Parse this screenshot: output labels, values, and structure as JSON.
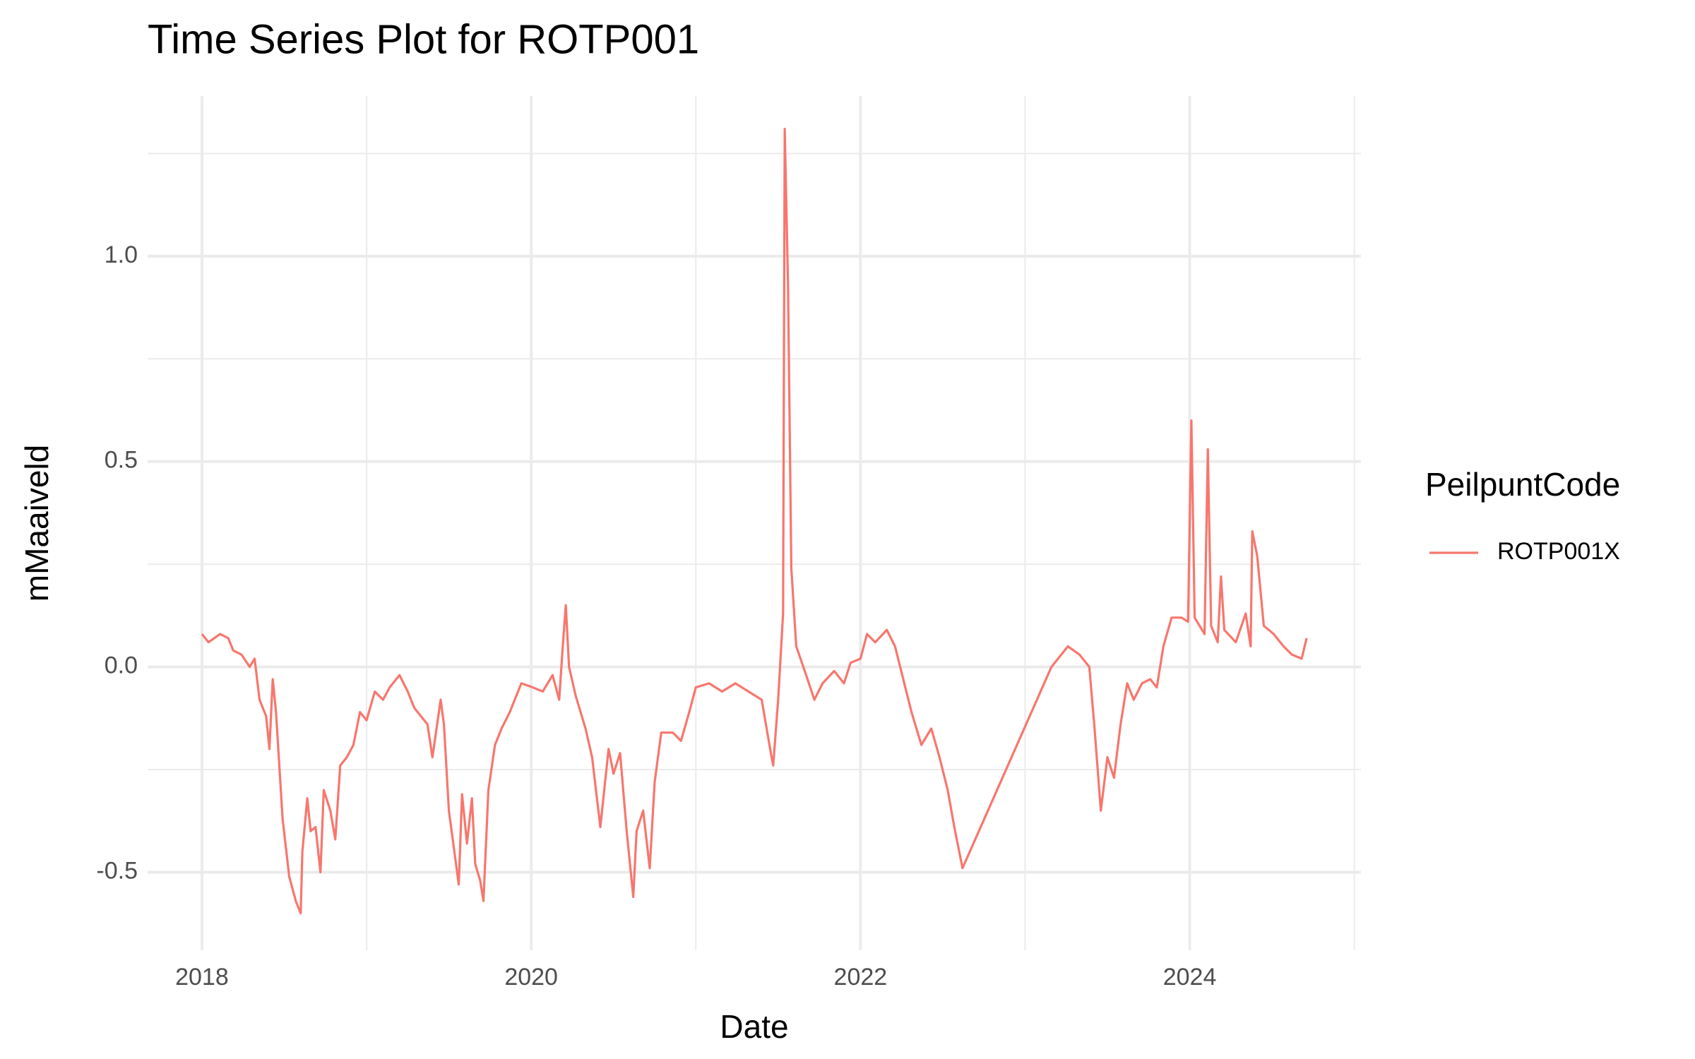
{
  "chart_data": {
    "type": "line",
    "title": "Time Series Plot for ROTP001",
    "x_label": "Date",
    "y_label": "mMaaiveld",
    "legend_title": "PeilpuntCode",
    "legend_position": "right",
    "grid": true,
    "xlim": [
      2017.67,
      2025.04
    ],
    "xticks": [
      2018,
      2020,
      2022,
      2024
    ],
    "xminor": [
      2019,
      2021,
      2023,
      2025
    ],
    "ylim": [
      -0.69,
      1.39
    ],
    "yticks": [
      {
        "value": -0.5,
        "label": "-0.5"
      },
      {
        "value": 0,
        "label": "0.0"
      },
      {
        "value": 0.5,
        "label": "0.5"
      },
      {
        "value": 1,
        "label": "1.0"
      }
    ],
    "yminor": [
      -0.25,
      0.25,
      0.75,
      1.25
    ],
    "x": [
      2018.0,
      2018.04,
      2018.11,
      2018.16,
      2018.19,
      2018.24,
      2018.29,
      2018.32,
      2018.35,
      2018.39,
      2018.41,
      2018.43,
      2018.45,
      2018.49,
      2018.53,
      2018.57,
      2018.6,
      2018.61,
      2018.64,
      2018.66,
      2018.69,
      2018.72,
      2018.74,
      2018.78,
      2018.81,
      2018.84,
      2018.88,
      2018.92,
      2018.96,
      2019.0,
      2019.05,
      2019.1,
      2019.14,
      2019.2,
      2019.25,
      2019.29,
      2019.37,
      2019.4,
      2019.45,
      2019.47,
      2019.5,
      2019.53,
      2019.56,
      2019.58,
      2019.61,
      2019.64,
      2019.66,
      2019.69,
      2019.71,
      2019.74,
      2019.78,
      2019.82,
      2019.87,
      2019.94,
      2020.01,
      2020.07,
      2020.13,
      2020.17,
      2020.19,
      2020.21,
      2020.23,
      2020.27,
      2020.33,
      2020.37,
      2020.42,
      2020.47,
      2020.5,
      2020.54,
      2020.58,
      2020.62,
      2020.64,
      2020.68,
      2020.72,
      2020.75,
      2020.79,
      2020.86,
      2020.91,
      2020.96,
      2021.0,
      2021.08,
      2021.16,
      2021.24,
      2021.32,
      2021.4,
      2021.46,
      2021.47,
      2021.5,
      2021.53,
      2021.54,
      2021.56,
      2021.58,
      2021.61,
      2021.67,
      2021.72,
      2021.77,
      2021.84,
      2021.9,
      2021.94,
      2022.0,
      2022.04,
      2022.09,
      2022.16,
      2022.21,
      2022.26,
      2022.31,
      2022.37,
      2022.43,
      2022.48,
      2022.53,
      2022.57,
      2022.62,
      2023.16,
      2023.26,
      2023.33,
      2023.39,
      2023.42,
      2023.46,
      2023.5,
      2023.54,
      2023.58,
      2023.62,
      2023.66,
      2023.71,
      2023.76,
      2023.8,
      2023.84,
      2023.89,
      2023.95,
      2023.99,
      2024.01,
      2024.03,
      2024.09,
      2024.11,
      2024.13,
      2024.17,
      2024.19,
      2024.21,
      2024.28,
      2024.34,
      2024.37,
      2024.38,
      2024.41,
      2024.45,
      2024.51,
      2024.57,
      2024.62,
      2024.68,
      2024.71
    ],
    "series": [
      {
        "name": "ROTP001X",
        "color": "#F8766D",
        "values": [
          0.08,
          0.06,
          0.08,
          0.07,
          0.04,
          0.03,
          0.0,
          0.02,
          -0.08,
          -0.12,
          -0.2,
          -0.03,
          -0.11,
          -0.37,
          -0.51,
          -0.57,
          -0.6,
          -0.45,
          -0.32,
          -0.4,
          -0.39,
          -0.5,
          -0.3,
          -0.35,
          -0.42,
          -0.24,
          -0.22,
          -0.19,
          -0.11,
          -0.13,
          -0.06,
          -0.08,
          -0.05,
          -0.02,
          -0.06,
          -0.1,
          -0.14,
          -0.22,
          -0.08,
          -0.14,
          -0.35,
          -0.44,
          -0.53,
          -0.31,
          -0.43,
          -0.32,
          -0.48,
          -0.52,
          -0.57,
          -0.3,
          -0.19,
          -0.15,
          -0.11,
          -0.04,
          -0.05,
          -0.06,
          -0.02,
          -0.08,
          0.04,
          0.15,
          0.0,
          -0.07,
          -0.15,
          -0.22,
          -0.39,
          -0.2,
          -0.26,
          -0.21,
          -0.4,
          -0.56,
          -0.4,
          -0.35,
          -0.49,
          -0.28,
          -0.16,
          -0.16,
          -0.18,
          -0.11,
          -0.05,
          -0.04,
          -0.06,
          -0.04,
          -0.06,
          -0.08,
          -0.22,
          -0.24,
          -0.08,
          0.13,
          1.31,
          0.93,
          0.24,
          0.05,
          -0.02,
          -0.08,
          -0.04,
          -0.01,
          -0.04,
          0.01,
          0.02,
          0.08,
          0.06,
          0.09,
          0.05,
          -0.03,
          -0.11,
          -0.19,
          -0.15,
          -0.22,
          -0.3,
          -0.39,
          -0.49,
          0.0,
          0.05,
          0.03,
          0.0,
          -0.14,
          -0.35,
          -0.22,
          -0.27,
          -0.14,
          -0.04,
          -0.08,
          -0.04,
          -0.03,
          -0.05,
          0.05,
          0.12,
          0.12,
          0.11,
          0.6,
          0.12,
          0.08,
          0.53,
          0.1,
          0.06,
          0.22,
          0.09,
          0.06,
          0.13,
          0.05,
          0.33,
          0.27,
          0.1,
          0.08,
          0.05,
          0.03,
          0.02,
          0.07
        ]
      }
    ]
  }
}
